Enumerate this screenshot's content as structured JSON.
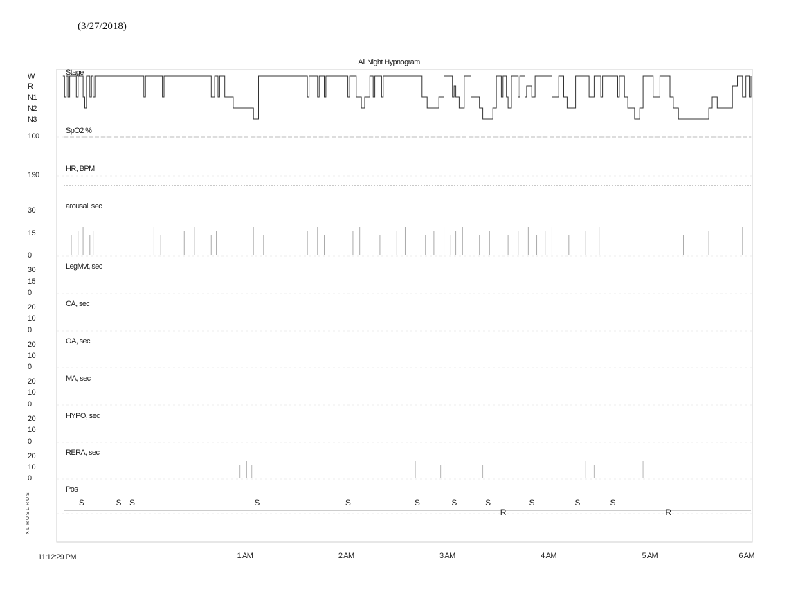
{
  "date_label": "(3/27/2018)",
  "chart_data": {
    "type": "line",
    "title": "All Night Hypnogram",
    "x_axis": {
      "start": "11:12:29 PM",
      "start_label": "11:12:29 PM",
      "end": "6 AM",
      "ticks": [
        "1 AM",
        "2 AM",
        "3 AM",
        "4 AM",
        "5 AM",
        "6 AM"
      ]
    },
    "panels": [
      {
        "id": "stage",
        "label": "Stage",
        "tick_labels": [
          "W",
          "R",
          "N1",
          "N2",
          "N3"
        ]
      },
      {
        "id": "spo2",
        "label": "SpO2 %",
        "tick_labels": [
          "100"
        ]
      },
      {
        "id": "hr",
        "label": "HR, BPM",
        "tick_labels": [
          "190"
        ]
      },
      {
        "id": "arousal",
        "label": "arousal, sec",
        "tick_labels": [
          "30",
          "15",
          "0"
        ]
      },
      {
        "id": "legmvt",
        "label": "LegMvt, sec",
        "tick_labels": [
          "30",
          "15",
          "0"
        ]
      },
      {
        "id": "ca",
        "label": "CA, sec",
        "tick_labels": [
          "20",
          "10",
          "0"
        ]
      },
      {
        "id": "oa",
        "label": "OA, sec",
        "tick_labels": [
          "20",
          "10",
          "0"
        ]
      },
      {
        "id": "ma",
        "label": "MA, sec",
        "tick_labels": [
          "20",
          "10",
          "0"
        ]
      },
      {
        "id": "hypo",
        "label": "HYPO, sec",
        "tick_labels": [
          "20",
          "10",
          "0"
        ]
      },
      {
        "id": "rera",
        "label": "RERA, sec",
        "tick_labels": [
          "20",
          "10",
          "0"
        ]
      },
      {
        "id": "pos",
        "label": "Pos",
        "tick_labels": []
      }
    ],
    "stage_levels": [
      "W",
      "R",
      "N1",
      "N2",
      "N3"
    ],
    "stage_series": [
      {
        "t": "23:12",
        "s": "W"
      },
      {
        "t": "23:13",
        "s": "N1"
      },
      {
        "t": "23:14",
        "s": "W"
      },
      {
        "t": "23:15",
        "s": "N1"
      },
      {
        "t": "23:16",
        "s": "W"
      },
      {
        "t": "23:20",
        "s": "N1"
      },
      {
        "t": "23:21",
        "s": "W"
      },
      {
        "t": "23:24",
        "s": "N1"
      },
      {
        "t": "23:25",
        "s": "N2"
      },
      {
        "t": "23:26",
        "s": "W"
      },
      {
        "t": "23:28",
        "s": "N1"
      },
      {
        "t": "23:29",
        "s": "W"
      },
      {
        "t": "23:30",
        "s": "N1"
      },
      {
        "t": "23:31",
        "s": "W"
      },
      {
        "t": "00:00",
        "s": "N1"
      },
      {
        "t": "00:01",
        "s": "W"
      },
      {
        "t": "00:11",
        "s": "N1"
      },
      {
        "t": "00:12",
        "s": "W"
      },
      {
        "t": "00:40",
        "s": "N1"
      },
      {
        "t": "00:42",
        "s": "W"
      },
      {
        "t": "00:44",
        "s": "N1"
      },
      {
        "t": "00:45",
        "s": "W"
      },
      {
        "t": "00:48",
        "s": "N1"
      },
      {
        "t": "00:53",
        "s": "N2"
      },
      {
        "t": "01:05",
        "s": "N3"
      },
      {
        "t": "01:08",
        "s": "W"
      },
      {
        "t": "01:37",
        "s": "N1"
      },
      {
        "t": "01:38",
        "s": "W"
      },
      {
        "t": "01:43",
        "s": "N1"
      },
      {
        "t": "01:44",
        "s": "W"
      },
      {
        "t": "01:47",
        "s": "N1"
      },
      {
        "t": "01:48",
        "s": "W"
      },
      {
        "t": "02:01",
        "s": "N1"
      },
      {
        "t": "02:02",
        "s": "W"
      },
      {
        "t": "02:06",
        "s": "N1"
      },
      {
        "t": "02:09",
        "s": "N2"
      },
      {
        "t": "02:11",
        "s": "N1"
      },
      {
        "t": "02:14",
        "s": "W"
      },
      {
        "t": "02:16",
        "s": "N1"
      },
      {
        "t": "02:17",
        "s": "W"
      },
      {
        "t": "02:21",
        "s": "N1"
      },
      {
        "t": "02:22",
        "s": "W"
      },
      {
        "t": "02:45",
        "s": "N1"
      },
      {
        "t": "02:48",
        "s": "N2"
      },
      {
        "t": "02:55",
        "s": "N1"
      },
      {
        "t": "02:58",
        "s": "W"
      },
      {
        "t": "03:03",
        "s": "N1"
      },
      {
        "t": "03:04",
        "s": "R"
      },
      {
        "t": "03:05",
        "s": "N1"
      },
      {
        "t": "03:07",
        "s": "N2"
      },
      {
        "t": "03:10",
        "s": "W"
      },
      {
        "t": "03:14",
        "s": "N1"
      },
      {
        "t": "03:19",
        "s": "N2"
      },
      {
        "t": "03:21",
        "s": "N3"
      },
      {
        "t": "03:27",
        "s": "N2"
      },
      {
        "t": "03:29",
        "s": "W"
      },
      {
        "t": "03:32",
        "s": "N1"
      },
      {
        "t": "03:33",
        "s": "W"
      },
      {
        "t": "03:35",
        "s": "N1"
      },
      {
        "t": "03:36",
        "s": "N2"
      },
      {
        "t": "03:38",
        "s": "W"
      },
      {
        "t": "03:42",
        "s": "N1"
      },
      {
        "t": "03:43",
        "s": "W"
      },
      {
        "t": "03:46",
        "s": "N1"
      },
      {
        "t": "03:47",
        "s": "R"
      },
      {
        "t": "03:50",
        "s": "N1"
      },
      {
        "t": "03:52",
        "s": "W"
      },
      {
        "t": "04:02",
        "s": "N1"
      },
      {
        "t": "04:06",
        "s": "W"
      },
      {
        "t": "04:09",
        "s": "N1"
      },
      {
        "t": "04:11",
        "s": "N2"
      },
      {
        "t": "04:16",
        "s": "W"
      },
      {
        "t": "04:24",
        "s": "N1"
      },
      {
        "t": "04:27",
        "s": "W"
      },
      {
        "t": "04:31",
        "s": "N1"
      },
      {
        "t": "04:32",
        "s": "W"
      },
      {
        "t": "04:41",
        "s": "N1"
      },
      {
        "t": "04:42",
        "s": "W"
      },
      {
        "t": "04:45",
        "s": "N1"
      },
      {
        "t": "04:47",
        "s": "N2"
      },
      {
        "t": "04:51",
        "s": "N3"
      },
      {
        "t": "04:54",
        "s": "N2"
      },
      {
        "t": "04:56",
        "s": "W"
      },
      {
        "t": "05:02",
        "s": "N1"
      },
      {
        "t": "05:06",
        "s": "W"
      },
      {
        "t": "05:12",
        "s": "N1"
      },
      {
        "t": "05:14",
        "s": "N2"
      },
      {
        "t": "05:17",
        "s": "N3"
      },
      {
        "t": "05:35",
        "s": "N2"
      },
      {
        "t": "05:37",
        "s": "N1"
      },
      {
        "t": "05:40",
        "s": "N2"
      },
      {
        "t": "05:47",
        "s": "N2"
      },
      {
        "t": "05:49",
        "s": "R"
      },
      {
        "t": "05:52",
        "s": "W"
      },
      {
        "t": "05:55",
        "s": "N1"
      },
      {
        "t": "05:57",
        "s": "W"
      },
      {
        "t": "05:59",
        "s": "N1"
      },
      {
        "t": "06:00",
        "s": "W"
      }
    ],
    "arousal_events": [
      "23:17",
      "23:21",
      "23:24",
      "23:28",
      "23:30",
      "00:06",
      "00:10",
      "00:24",
      "00:30",
      "00:40",
      "00:43",
      "01:05",
      "01:11",
      "01:37",
      "01:43",
      "01:47",
      "02:04",
      "02:08",
      "02:20",
      "02:30",
      "02:35",
      "02:47",
      "02:52",
      "02:58",
      "03:02",
      "03:05",
      "03:09",
      "03:19",
      "03:25",
      "03:30",
      "03:36",
      "03:42",
      "03:48",
      "03:53",
      "03:58",
      "04:02",
      "04:12",
      "04:22",
      "04:30",
      "05:20",
      "05:35",
      "05:55"
    ],
    "rera_events": [
      "00:57",
      "01:01",
      "01:04",
      "02:41",
      "02:56",
      "02:58",
      "03:21",
      "04:22",
      "04:27",
      "04:56"
    ],
    "position_labels": [
      {
        "t": "23:23",
        "label": "S"
      },
      {
        "t": "23:45",
        "label": "S"
      },
      {
        "t": "23:53",
        "label": "S"
      },
      {
        "t": "01:07",
        "label": "S"
      },
      {
        "t": "02:01",
        "label": "S"
      },
      {
        "t": "02:42",
        "label": "S"
      },
      {
        "t": "03:04",
        "label": "S"
      },
      {
        "t": "03:24",
        "label": "S"
      },
      {
        "t": "03:33",
        "label": "R"
      },
      {
        "t": "03:50",
        "label": "S"
      },
      {
        "t": "04:17",
        "label": "S"
      },
      {
        "t": "04:38",
        "label": "S"
      },
      {
        "t": "05:11",
        "label": "R"
      }
    ],
    "position_y_ticks": [
      "S",
      "U",
      "R",
      "L",
      "S",
      "U",
      "R",
      "L",
      "X"
    ]
  }
}
